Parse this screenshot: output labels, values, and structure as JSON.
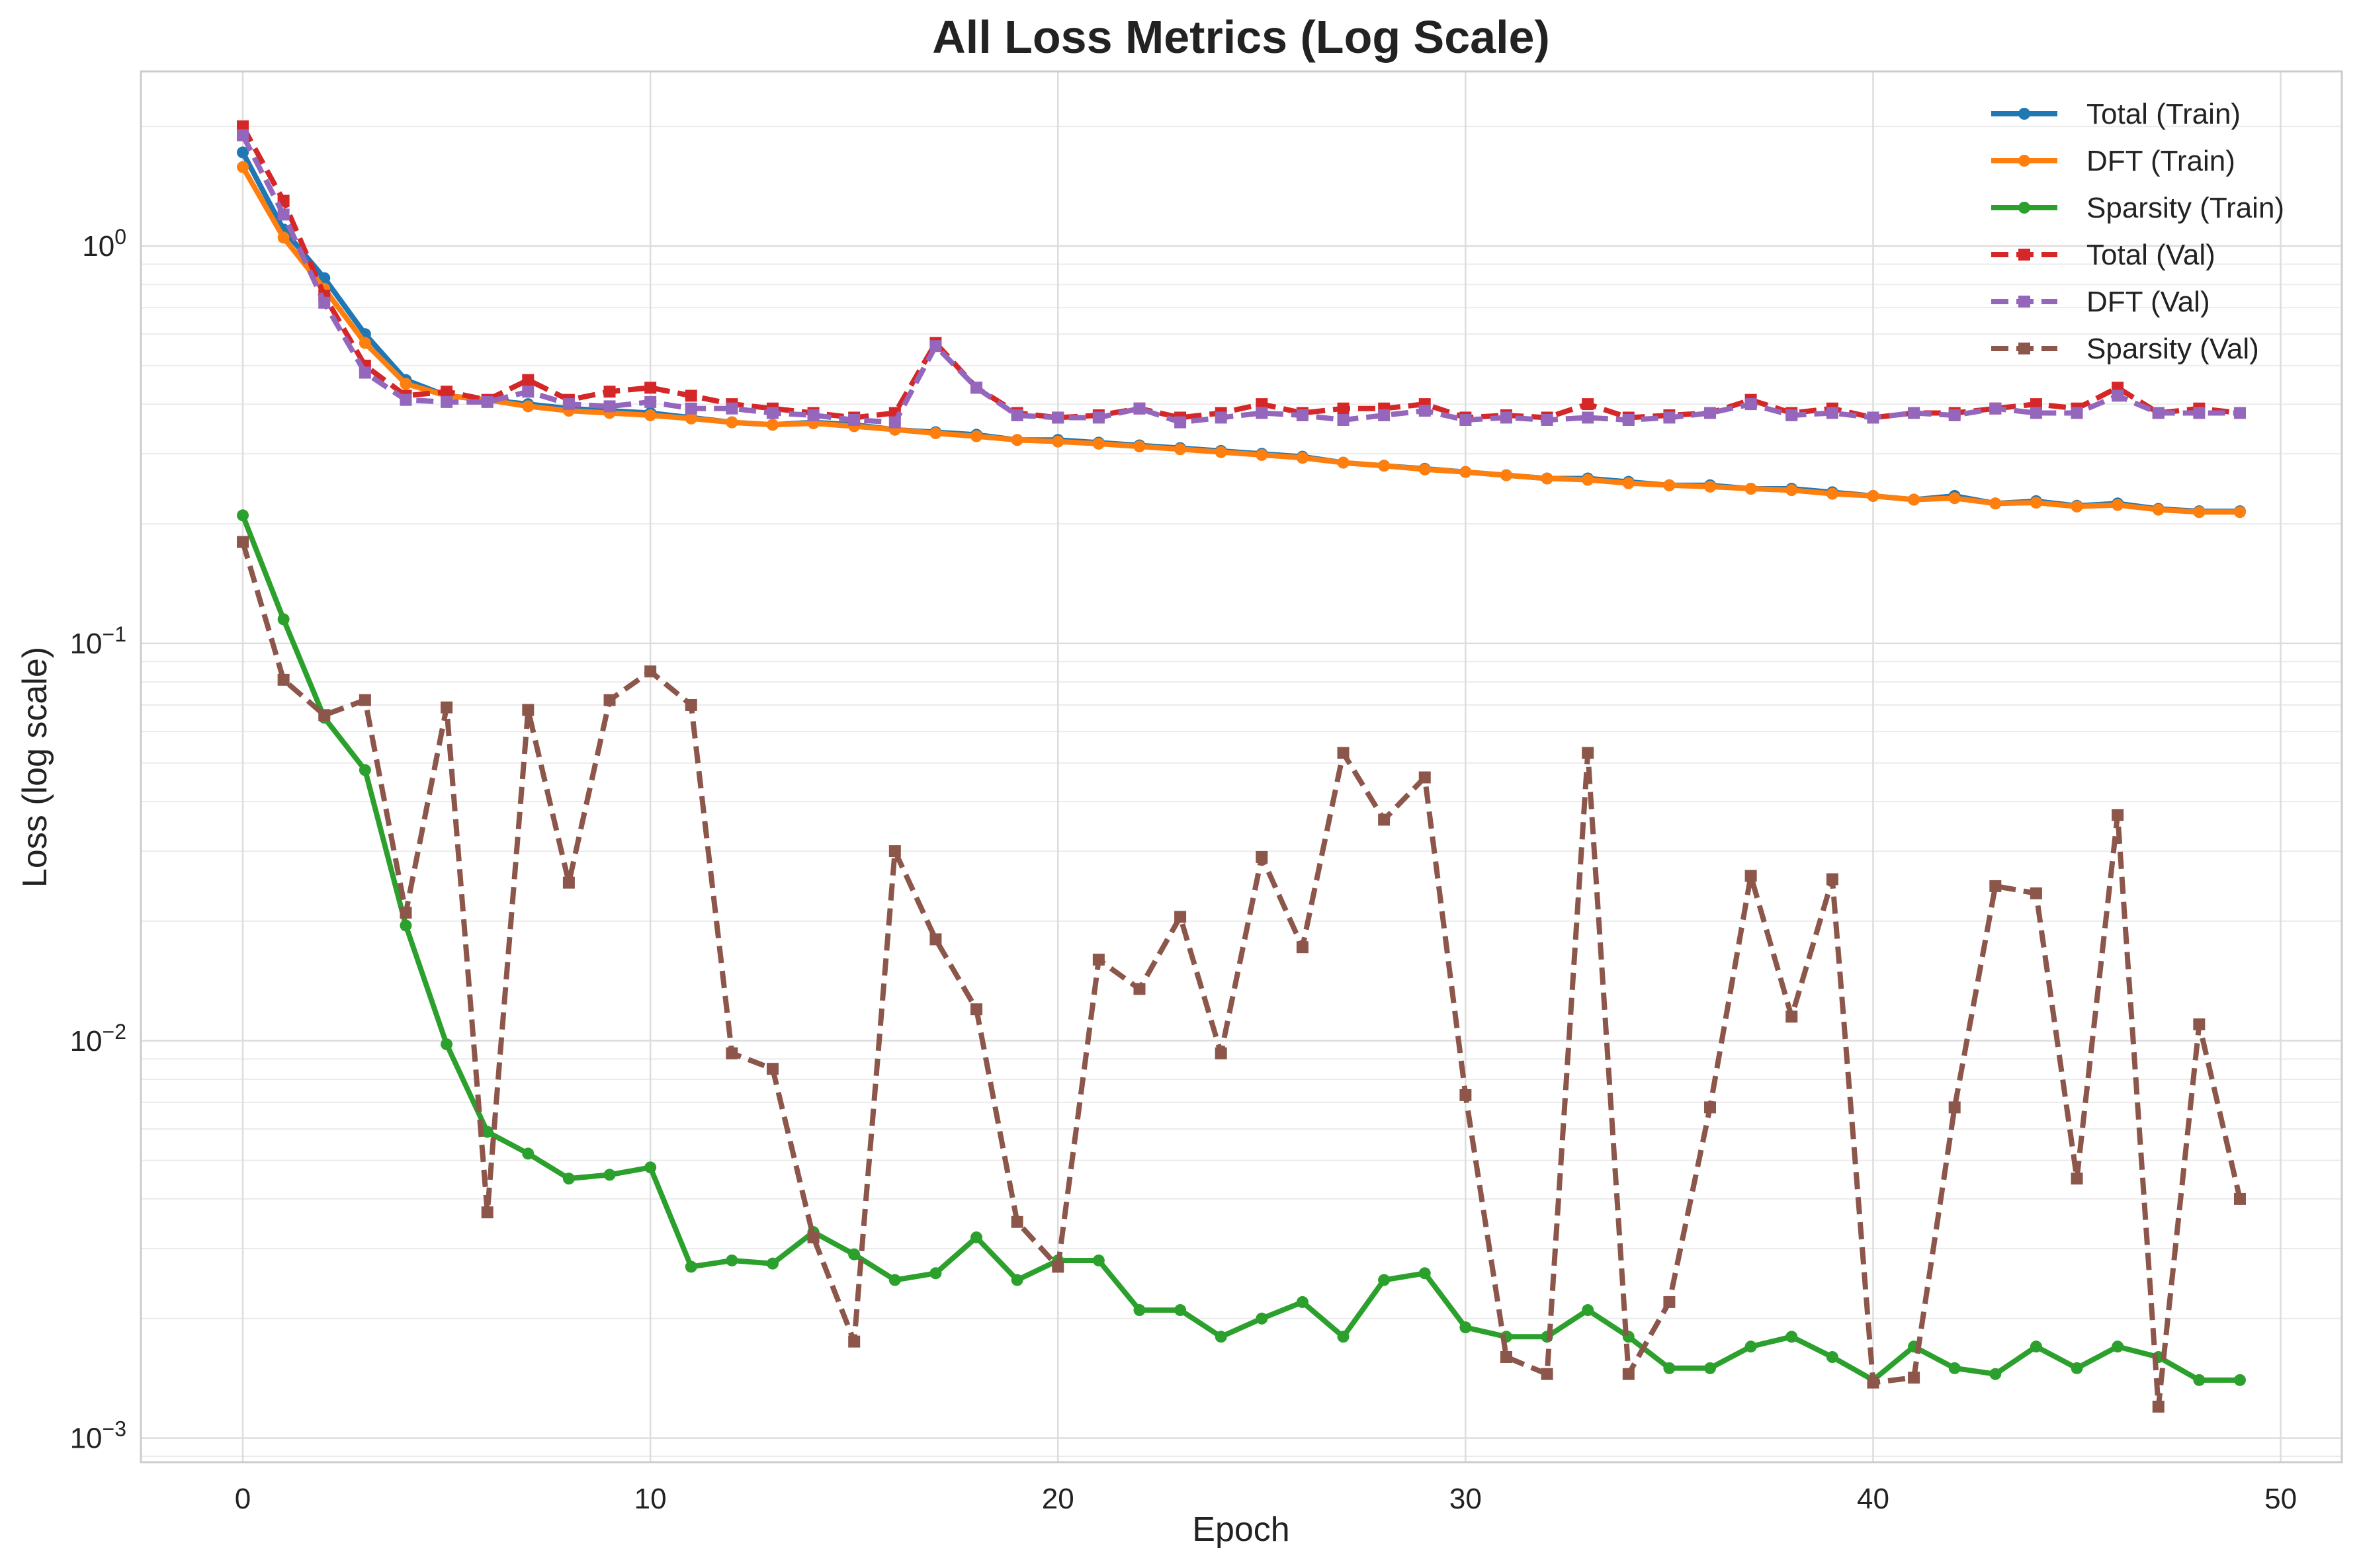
{
  "chart_data": {
    "type": "line",
    "title": "All Loss Metrics (Log Scale)",
    "xlabel": "Epoch",
    "ylabel": "Loss (log scale)",
    "yscale": "log",
    "xlim": [
      -2.5,
      51.5
    ],
    "ylim": [
      0.00087,
      2.75
    ],
    "grid": true,
    "legend_position": "top-right",
    "x_ticks": [
      0,
      10,
      20,
      30,
      40,
      50
    ],
    "x_tick_labels": [
      "0",
      "10",
      "20",
      "30",
      "40",
      "50"
    ],
    "y_ticks": [
      1,
      0.1,
      0.01,
      0.001
    ],
    "y_tick_labels": [
      {
        "base": "10",
        "exp": "0"
      },
      {
        "base": "10",
        "exp": "−1"
      },
      {
        "base": "10",
        "exp": "−2"
      },
      {
        "base": "10",
        "exp": "−3"
      }
    ],
    "x": [
      0,
      1,
      2,
      3,
      4,
      5,
      6,
      7,
      8,
      9,
      10,
      11,
      12,
      13,
      14,
      15,
      16,
      17,
      18,
      19,
      20,
      21,
      22,
      23,
      24,
      25,
      26,
      27,
      28,
      29,
      30,
      31,
      32,
      33,
      34,
      35,
      36,
      37,
      38,
      39,
      40,
      41,
      42,
      43,
      44,
      45,
      46,
      47,
      48,
      49
    ],
    "series": [
      {
        "name": "Total (Train)",
        "color": "#1f77b4",
        "linestyle": "solid",
        "marker": "circle",
        "values": [
          1.72,
          1.1,
          0.83,
          0.6,
          0.46,
          0.42,
          0.41,
          0.4,
          0.39,
          0.385,
          0.38,
          0.37,
          0.36,
          0.355,
          0.36,
          0.355,
          0.345,
          0.34,
          0.335,
          0.325,
          0.325,
          0.32,
          0.315,
          0.31,
          0.305,
          0.3,
          0.295,
          0.285,
          0.28,
          0.275,
          0.27,
          0.265,
          0.26,
          0.26,
          0.255,
          0.25,
          0.25,
          0.245,
          0.245,
          0.24,
          0.235,
          0.23,
          0.235,
          0.225,
          0.228,
          0.222,
          0.225,
          0.218,
          0.215,
          0.215
        ]
      },
      {
        "name": "DFT (Train)",
        "color": "#ff7f0e",
        "linestyle": "solid",
        "marker": "circle",
        "values": [
          1.58,
          1.05,
          0.78,
          0.57,
          0.45,
          0.42,
          0.41,
          0.395,
          0.385,
          0.38,
          0.375,
          0.368,
          0.36,
          0.355,
          0.358,
          0.352,
          0.345,
          0.338,
          0.332,
          0.325,
          0.322,
          0.318,
          0.313,
          0.308,
          0.303,
          0.298,
          0.293,
          0.285,
          0.28,
          0.274,
          0.27,
          0.265,
          0.26,
          0.258,
          0.253,
          0.25,
          0.248,
          0.245,
          0.243,
          0.238,
          0.235,
          0.23,
          0.232,
          0.225,
          0.226,
          0.221,
          0.223,
          0.217,
          0.214,
          0.214
        ]
      },
      {
        "name": "Sparsity (Train)",
        "color": "#2ca02c",
        "linestyle": "solid",
        "marker": "circle",
        "values": [
          0.21,
          0.115,
          0.065,
          0.048,
          0.0195,
          0.0098,
          0.0059,
          0.0052,
          0.0045,
          0.0046,
          0.0048,
          0.0027,
          0.0028,
          0.00275,
          0.0033,
          0.0029,
          0.0025,
          0.0026,
          0.0032,
          0.0025,
          0.0028,
          0.0028,
          0.0021,
          0.0021,
          0.0018,
          0.002,
          0.0022,
          0.0018,
          0.0025,
          0.0026,
          0.0019,
          0.0018,
          0.0018,
          0.0021,
          0.0018,
          0.0015,
          0.0015,
          0.0017,
          0.0018,
          0.0016,
          0.0014,
          0.0017,
          0.0015,
          0.00145,
          0.0017,
          0.0015,
          0.0017,
          0.0016,
          0.0014,
          0.0014
        ]
      },
      {
        "name": "Total (Val)",
        "color": "#d62728",
        "linestyle": "dashed",
        "marker": "square",
        "values": [
          2.0,
          1.3,
          0.75,
          0.5,
          0.42,
          0.43,
          0.41,
          0.46,
          0.41,
          0.43,
          0.44,
          0.42,
          0.4,
          0.39,
          0.38,
          0.37,
          0.38,
          0.57,
          0.44,
          0.38,
          0.37,
          0.375,
          0.39,
          0.37,
          0.38,
          0.4,
          0.38,
          0.39,
          0.39,
          0.4,
          0.37,
          0.375,
          0.37,
          0.4,
          0.37,
          0.375,
          0.38,
          0.41,
          0.38,
          0.39,
          0.37,
          0.38,
          0.38,
          0.39,
          0.4,
          0.39,
          0.44,
          0.38,
          0.39,
          0.38
        ]
      },
      {
        "name": "DFT (Val)",
        "color": "#9467bd",
        "linestyle": "dashed",
        "marker": "square",
        "values": [
          1.9,
          1.2,
          0.72,
          0.48,
          0.41,
          0.405,
          0.405,
          0.43,
          0.4,
          0.395,
          0.405,
          0.39,
          0.39,
          0.38,
          0.375,
          0.365,
          0.36,
          0.56,
          0.44,
          0.375,
          0.37,
          0.37,
          0.39,
          0.36,
          0.37,
          0.38,
          0.375,
          0.365,
          0.375,
          0.385,
          0.365,
          0.37,
          0.365,
          0.37,
          0.365,
          0.37,
          0.38,
          0.4,
          0.375,
          0.38,
          0.37,
          0.38,
          0.375,
          0.39,
          0.38,
          0.38,
          0.42,
          0.38,
          0.38,
          0.38
        ]
      },
      {
        "name": "Sparsity (Val)",
        "color": "#8c564b",
        "linestyle": "dashed",
        "marker": "square",
        "values": [
          0.18,
          0.081,
          0.066,
          0.072,
          0.021,
          0.069,
          0.0037,
          0.068,
          0.025,
          0.072,
          0.085,
          0.07,
          0.0093,
          0.0085,
          0.0032,
          0.00175,
          0.03,
          0.018,
          0.012,
          0.0035,
          0.0027,
          0.016,
          0.0135,
          0.0205,
          0.0093,
          0.029,
          0.0172,
          0.053,
          0.036,
          0.046,
          0.0073,
          0.0016,
          0.00145,
          0.053,
          0.00145,
          0.0022,
          0.0068,
          0.026,
          0.0115,
          0.0255,
          0.00138,
          0.00142,
          0.0068,
          0.0245,
          0.0235,
          0.0045,
          0.037,
          0.0012,
          0.011,
          0.004
        ]
      }
    ]
  }
}
